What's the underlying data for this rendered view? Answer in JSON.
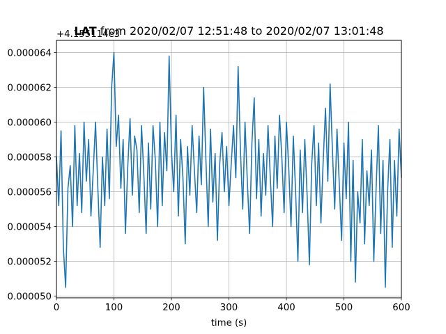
{
  "chart_data": {
    "type": "line",
    "title_bold": "LAT",
    "title_rest": " from 2020/02/07 12:51:48 to 2020/02/07 13:01:48",
    "offset_label": "+4.155114e3",
    "xlabel": "time (s)",
    "ylabel": "",
    "xlim": [
      0,
      600
    ],
    "ylim": [
      4.99e-05,
      6.47e-05
    ],
    "grid": true,
    "line_color": "#1f77b4",
    "x_ticks": [
      0,
      100,
      200,
      300,
      400,
      500,
      600
    ],
    "x_tick_labels": [
      "0",
      "100",
      "200",
      "300",
      "400",
      "500",
      "600"
    ],
    "y_ticks": [
      5e-05,
      5.2e-05,
      5.4e-05,
      5.6e-05,
      5.8e-05,
      6e-05,
      6.2e-05,
      6.4e-05
    ],
    "y_tick_labels": [
      "0.000050",
      "0.000052",
      "0.000054",
      "0.000056",
      "0.000058",
      "0.000060",
      "0.000062",
      "0.000064"
    ],
    "series": [
      {
        "x": [
          0,
          4,
          8,
          12,
          16,
          20,
          24,
          28,
          32,
          36,
          40,
          44,
          48,
          52,
          56,
          60,
          64,
          68,
          72,
          76,
          80,
          84,
          88,
          92,
          96,
          100,
          104,
          108,
          112,
          116,
          120,
          124,
          128,
          132,
          136,
          140,
          144,
          148,
          152,
          156,
          160,
          164,
          168,
          172,
          176,
          180,
          184,
          188,
          192,
          196,
          200,
          204,
          208,
          212,
          216,
          220,
          224,
          228,
          232,
          236,
          240,
          244,
          248,
          252,
          256,
          260,
          264,
          268,
          272,
          276,
          280,
          284,
          288,
          292,
          296,
          300,
          304,
          308,
          312,
          316,
          320,
          324,
          328,
          332,
          336,
          340,
          344,
          348,
          352,
          356,
          360,
          364,
          368,
          372,
          376,
          380,
          384,
          388,
          392,
          396,
          400,
          404,
          408,
          412,
          416,
          420,
          424,
          428,
          432,
          436,
          440,
          444,
          448,
          452,
          456,
          460,
          464,
          468,
          472,
          476,
          480,
          484,
          488,
          492,
          496,
          500,
          504,
          508,
          512,
          516,
          520,
          524,
          528,
          532,
          536,
          540,
          544,
          548,
          552,
          556,
          560,
          564,
          568,
          572,
          576,
          580,
          584,
          588,
          592,
          596,
          600
        ],
        "y": [
          5.8e-05,
          5.52e-05,
          5.95e-05,
          5.28e-05,
          5.05e-05,
          5.62e-05,
          5.75e-05,
          5.4e-05,
          5.98e-05,
          5.52e-05,
          5.82e-05,
          5.48e-05,
          6e-05,
          5.66e-05,
          5.9e-05,
          5.46e-05,
          5.72e-05,
          6e-05,
          5.62e-05,
          5.28e-05,
          5.8e-05,
          5.52e-05,
          5.96e-05,
          5.56e-05,
          6.2e-05,
          6.4e-05,
          5.86e-05,
          6.04e-05,
          5.62e-05,
          5.9e-05,
          5.36e-05,
          5.74e-05,
          6.02e-05,
          5.58e-05,
          5.92e-05,
          5.84e-05,
          5.48e-05,
          5.98e-05,
          5.7e-05,
          5.36e-05,
          5.88e-05,
          5.5e-05,
          5.98e-05,
          5.78e-05,
          5.4e-05,
          6e-05,
          5.52e-05,
          5.94e-05,
          5.72e-05,
          6.38e-05,
          5.84e-05,
          5.6e-05,
          6.04e-05,
          5.46e-05,
          5.9e-05,
          5.68e-05,
          5.3e-05,
          5.86e-05,
          5.58e-05,
          5.98e-05,
          5.72e-05,
          5.48e-05,
          5.92e-05,
          5.64e-05,
          6.2e-05,
          5.78e-05,
          5.4e-05,
          5.96e-05,
          5.54e-05,
          5.82e-05,
          5.32e-05,
          5.76e-05,
          5.94e-05,
          5.6e-05,
          5.86e-05,
          5.52e-05,
          5.76e-05,
          5.98e-05,
          5.68e-05,
          6.32e-05,
          5.84e-05,
          5.5e-05,
          6e-05,
          5.66e-05,
          5.36e-05,
          5.88e-05,
          6.14e-05,
          5.56e-05,
          5.9e-05,
          5.46e-05,
          5.82e-05,
          5.58e-05,
          5.98e-05,
          5.68e-05,
          5.4e-05,
          5.92e-05,
          5.62e-05,
          6.04e-05,
          5.8e-05,
          5.48e-05,
          6e-05,
          5.74e-05,
          5.4e-05,
          5.92e-05,
          5.6e-05,
          5.2e-05,
          5.84e-05,
          5.48e-05,
          5.9e-05,
          5.58e-05,
          5.18e-05,
          5.76e-05,
          5.98e-05,
          5.52e-05,
          5.88e-05,
          5.42e-05,
          5.78e-05,
          6.08e-05,
          5.66e-05,
          6.22e-05,
          5.84e-05,
          5.5e-05,
          5.96e-05,
          5.64e-05,
          5.32e-05,
          5.88e-05,
          5.56e-05,
          6e-05,
          5.2e-05,
          5.78e-05,
          5.08e-05,
          5.6e-05,
          5.42e-05,
          5.9e-05,
          5.3e-05,
          5.72e-05,
          5.52e-05,
          5.84e-05,
          5.2e-05,
          5.62e-05,
          5.98e-05,
          5.36e-05,
          5.78e-05,
          5.05e-05,
          5.6e-05,
          5.9e-05,
          5.28e-05,
          5.78e-05,
          5.46e-05,
          5.96e-05,
          5.68e-05
        ]
      }
    ]
  }
}
